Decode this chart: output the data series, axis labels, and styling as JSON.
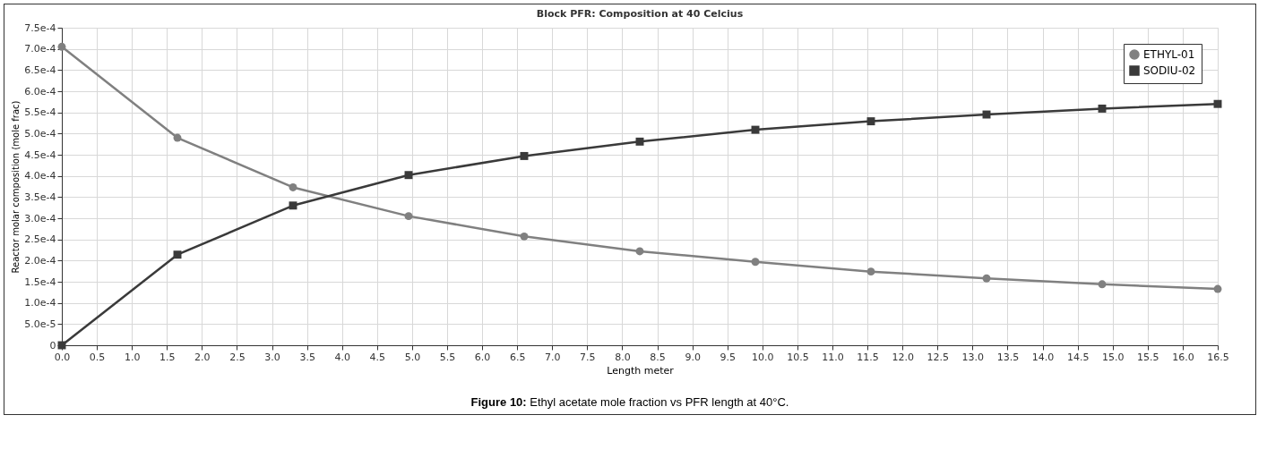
{
  "chart_data": {
    "type": "line",
    "title": "Block PFR: Composition at 40 Celcius",
    "xlabel": "Length meter",
    "ylabel": "Reactor molar composition (mole frac)",
    "annotations": [
      "Figure 10: Ethyl acetate mole fraction vs PFR length at 40°C."
    ],
    "x": [
      0,
      1.65,
      3.3,
      4.95,
      6.6,
      8.25,
      9.9,
      11.55,
      13.2,
      14.85,
      16.5
    ],
    "series": [
      {
        "name": "ETHYL-01",
        "color": "#808080",
        "marker": "circle",
        "values": [
          0.000705,
          0.00049,
          0.000373,
          0.000305,
          0.000257,
          0.000222,
          0.000197,
          0.000174,
          0.000158,
          0.000144,
          0.000133
        ]
      },
      {
        "name": "SODIU-02",
        "color": "#3a3a3a",
        "marker": "square",
        "values": [
          0,
          0.000214,
          0.00033,
          0.000402,
          0.000447,
          0.000481,
          0.000509,
          0.000529,
          0.000545,
          0.000559,
          0.00057
        ]
      }
    ],
    "xlim": [
      0,
      16.5
    ],
    "xticks": [
      {
        "value": 0,
        "label": "0.0"
      },
      {
        "value": 0.5,
        "label": "0.5"
      },
      {
        "value": 1,
        "label": "1.0"
      },
      {
        "value": 1.5,
        "label": "1.5"
      },
      {
        "value": 2,
        "label": "2.0"
      },
      {
        "value": 2.5,
        "label": "2.5"
      },
      {
        "value": 3,
        "label": "3.0"
      },
      {
        "value": 3.5,
        "label": "3.5"
      },
      {
        "value": 4,
        "label": "4.0"
      },
      {
        "value": 4.5,
        "label": "4.5"
      },
      {
        "value": 5,
        "label": "5.0"
      },
      {
        "value": 5.5,
        "label": "5.5"
      },
      {
        "value": 6,
        "label": "6.0"
      },
      {
        "value": 6.5,
        "label": "6.5"
      },
      {
        "value": 7,
        "label": "7.0"
      },
      {
        "value": 7.5,
        "label": "7.5"
      },
      {
        "value": 8,
        "label": "8.0"
      },
      {
        "value": 8.5,
        "label": "8.5"
      },
      {
        "value": 9,
        "label": "9.0"
      },
      {
        "value": 9.5,
        "label": "9.5"
      },
      {
        "value": 10,
        "label": "10.0"
      },
      {
        "value": 10.5,
        "label": "10.5"
      },
      {
        "value": 11,
        "label": "11.0"
      },
      {
        "value": 11.5,
        "label": "11.5"
      },
      {
        "value": 12,
        "label": "12.0"
      },
      {
        "value": 12.5,
        "label": "12.5"
      },
      {
        "value": 13,
        "label": "13.0"
      },
      {
        "value": 13.5,
        "label": "13.5"
      },
      {
        "value": 14,
        "label": "14.0"
      },
      {
        "value": 14.5,
        "label": "14.5"
      },
      {
        "value": 15,
        "label": "15.0"
      },
      {
        "value": 15.5,
        "label": "15.5"
      },
      {
        "value": 16,
        "label": "16.0"
      },
      {
        "value": 16.5,
        "label": "16.5"
      }
    ],
    "ylim": [
      0,
      0.00075
    ],
    "yticks": [
      0,
      {
        "value": 5e-05,
        "label": "5.0e-5"
      },
      {
        "value": 0.0001,
        "label": "1.0e-4"
      },
      {
        "value": 0.00015,
        "label": "1.5e-4"
      },
      {
        "value": 0.0002,
        "label": "2.0e-4"
      },
      {
        "value": 0.00025,
        "label": "2.5e-4"
      },
      {
        "value": 0.0003,
        "label": "3.0e-4"
      },
      {
        "value": 0.00035,
        "label": "3.5e-4"
      },
      {
        "value": 0.0004,
        "label": "4.0e-4"
      },
      {
        "value": 0.00045,
        "label": "4.5e-4"
      },
      {
        "value": 0.0005,
        "label": "5.0e-4"
      },
      {
        "value": 0.00055,
        "label": "5.5e-4"
      },
      {
        "value": 0.0006,
        "label": "6.0e-4"
      },
      {
        "value": 0.00065,
        "label": "6.5e-4"
      },
      {
        "value": 0.0007,
        "label": "7.0e-4"
      },
      {
        "value": 0.00075,
        "label": "7.5e-4"
      }
    ],
    "grid": true,
    "legend": "top right",
    "line_style": "solid"
  }
}
